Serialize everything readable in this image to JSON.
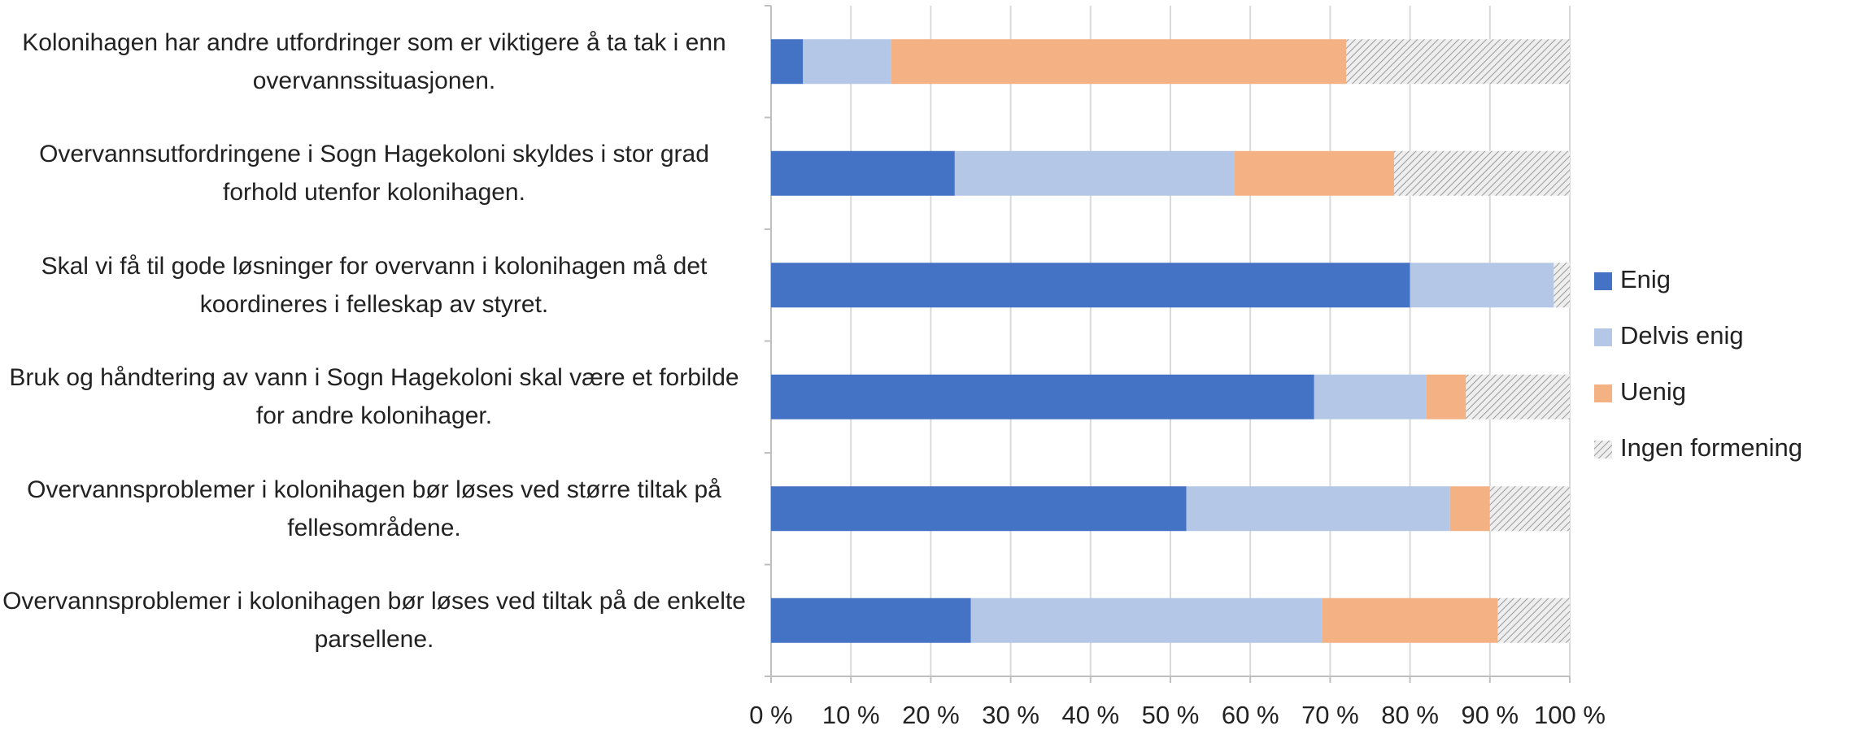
{
  "chart_data": {
    "type": "stacked_barh",
    "categories": [
      "Kolonihagen har andre utfordringer som er viktigere å ta tak i enn overvannssituasjonen.",
      "Overvannsutfordringene i Sogn Hagekoloni skyldes i stor grad forhold utenfor kolonihagen.",
      "Skal vi få til gode løsninger for overvann i kolonihagen må det koordineres i felleskap av styret.",
      "Bruk og håndtering av vann i Sogn Hagekoloni skal være et forbilde for andre kolonihager.",
      "Overvannsproblemer i kolonihagen bør løses ved større tiltak på fellesområdene.",
      "Overvannsproblemer i kolonihagen bør løses ved tiltak på de enkelte parsellene."
    ],
    "series": [
      {
        "name": "Enig",
        "color": "#4472c4",
        "values": [
          4,
          23,
          80,
          68,
          52,
          25
        ]
      },
      {
        "name": "Delvis enig",
        "color": "#b4c7e7",
        "values": [
          11,
          35,
          18,
          14,
          33,
          44
        ]
      },
      {
        "name": "Uenig",
        "color": "#f4b183",
        "values": [
          57,
          20,
          0,
          5,
          5,
          22
        ]
      },
      {
        "name": "Ingen formening",
        "color": "#d9d9d9",
        "pattern": "hatch",
        "values": [
          28,
          22,
          2,
          13,
          10,
          9
        ]
      }
    ],
    "xlim": [
      0,
      100
    ],
    "xticks": [
      {
        "value": 0,
        "label": "0 %"
      },
      {
        "value": 10,
        "label": "10 %"
      },
      {
        "value": 20,
        "label": "20 %"
      },
      {
        "value": 30,
        "label": "30 %"
      },
      {
        "value": 40,
        "label": "40 %"
      },
      {
        "value": 50,
        "label": "50 %"
      },
      {
        "value": 60,
        "label": "60 %"
      },
      {
        "value": 70,
        "label": "70 %"
      },
      {
        "value": 80,
        "label": "80 %"
      },
      {
        "value": 90,
        "label": "90 %"
      },
      {
        "value": 100,
        "label": "100 %"
      }
    ],
    "grid": true,
    "legend": "right"
  }
}
